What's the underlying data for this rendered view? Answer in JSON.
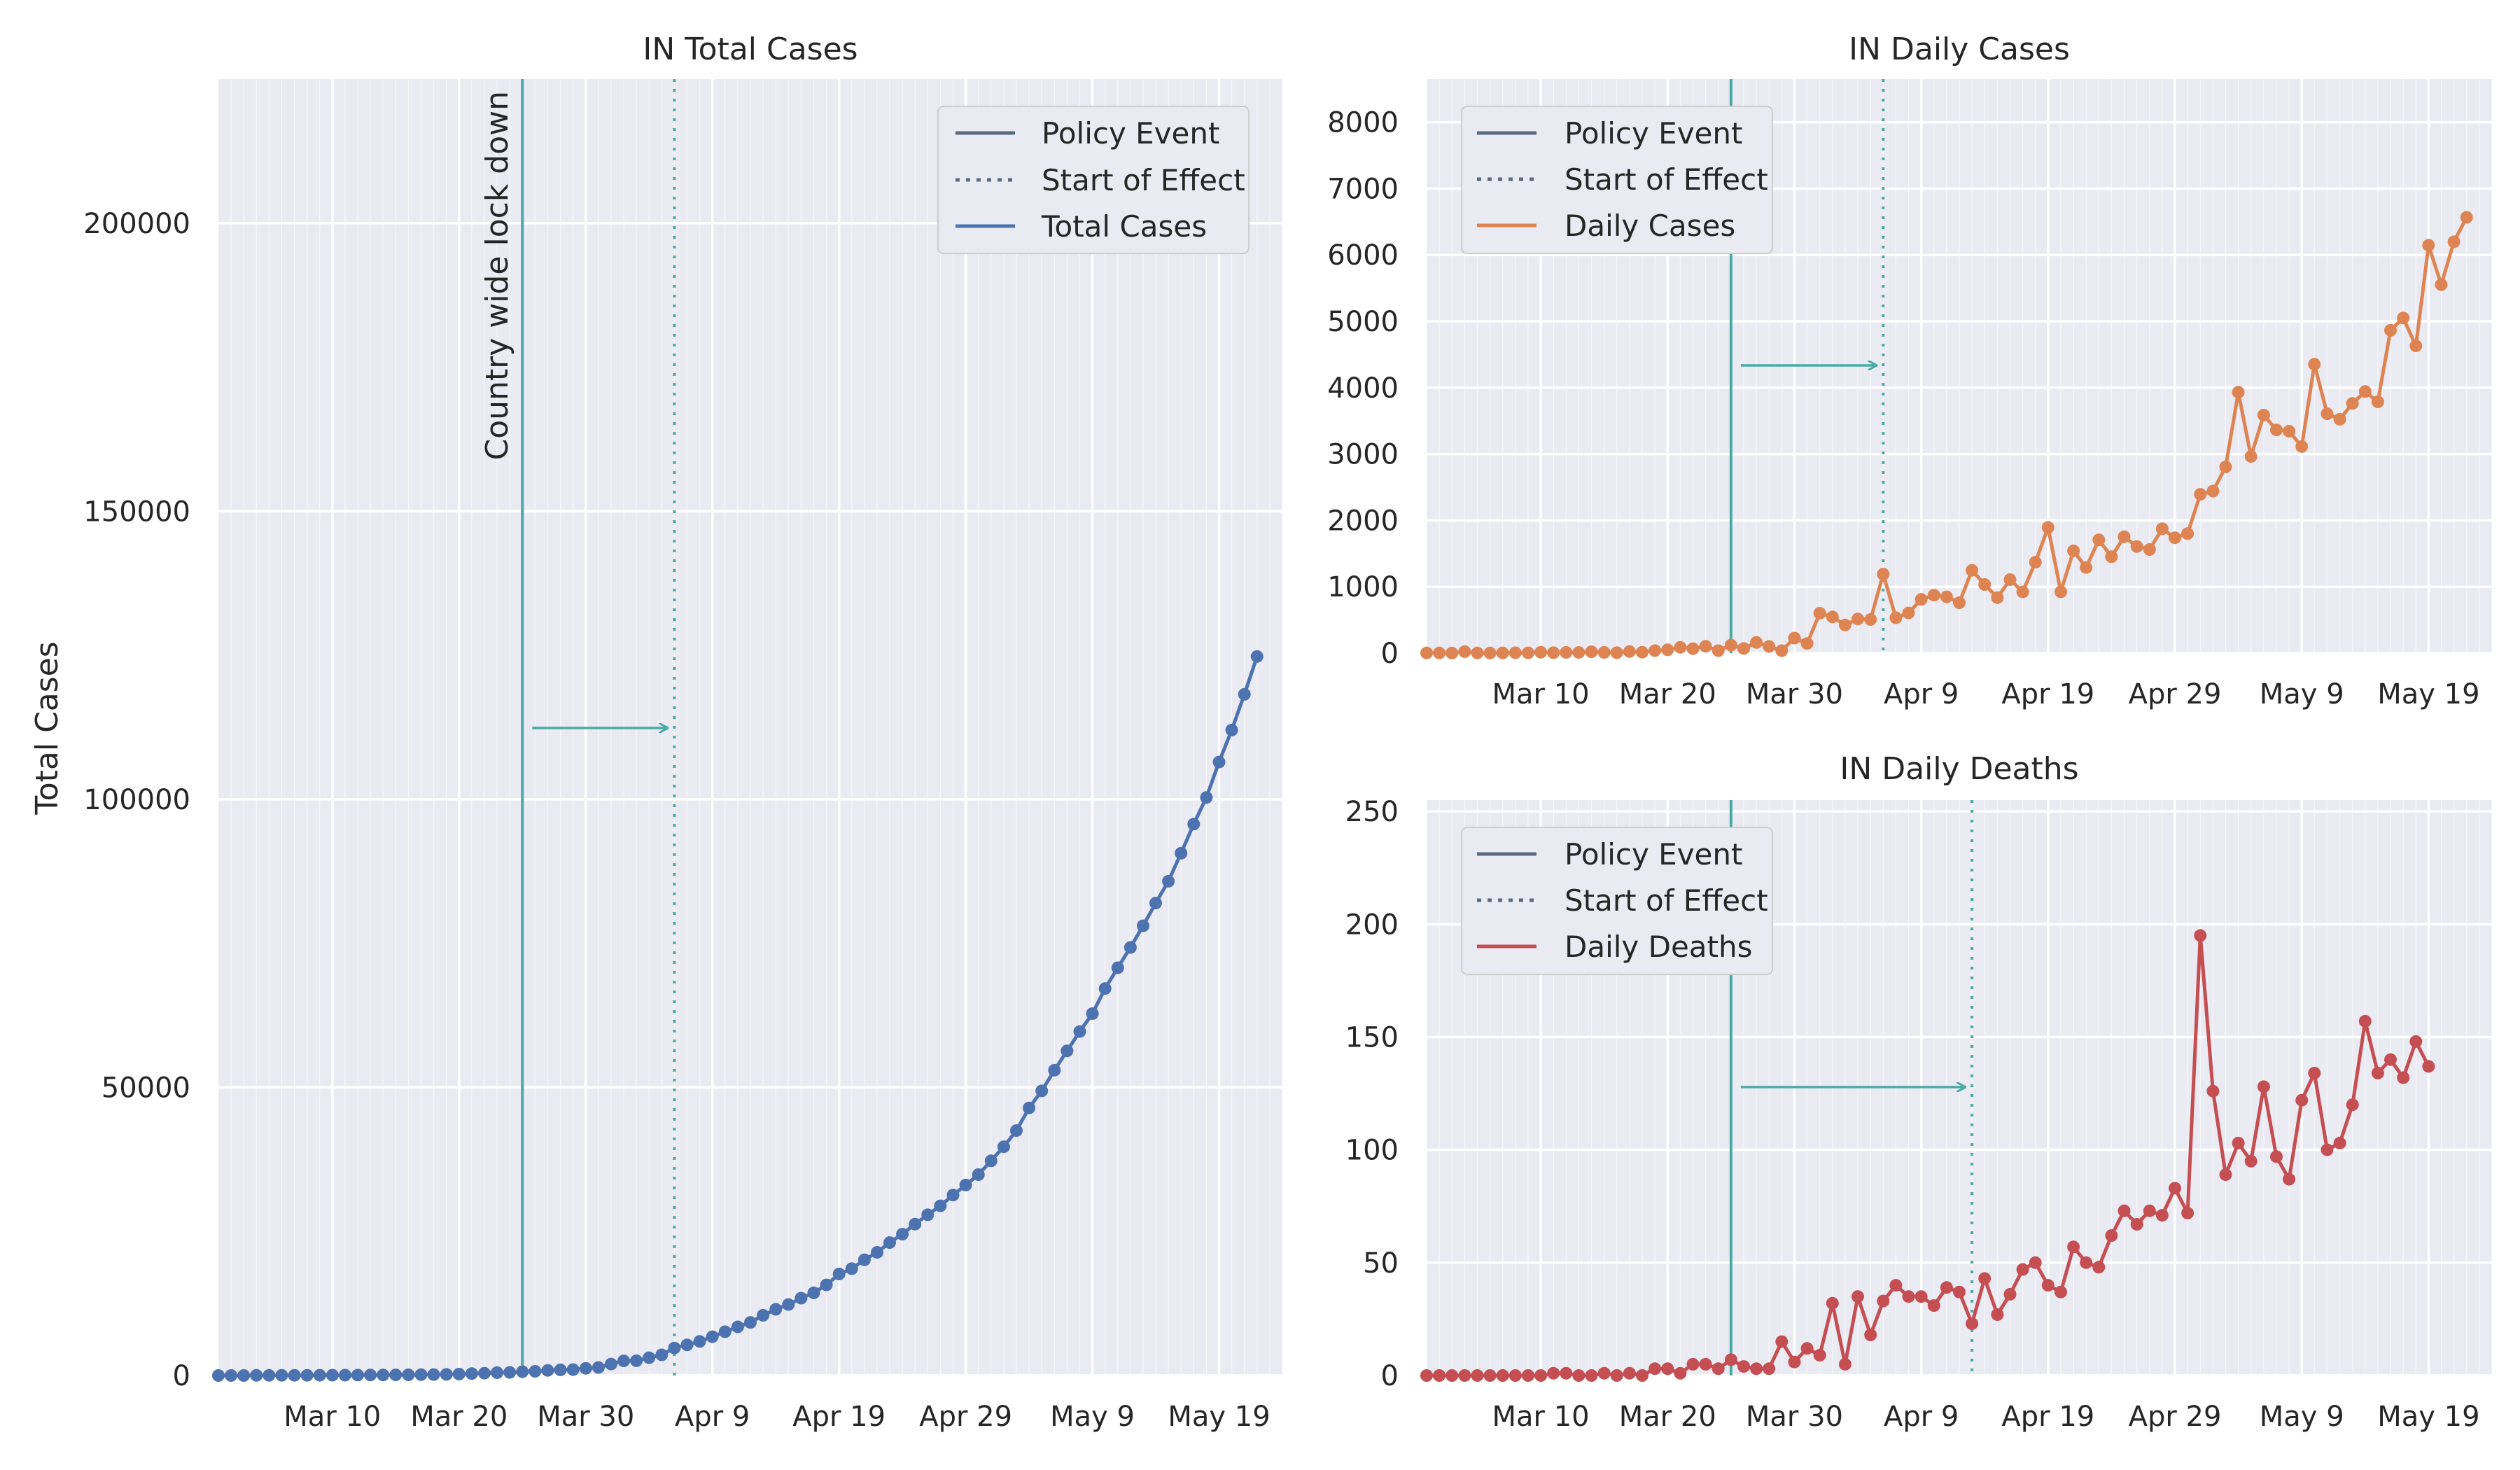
{
  "colors": {
    "panel_bg": "#eaeaf2",
    "grid": "#ffffff",
    "policy_line": "#4aaaa5",
    "legend_policy": "#5a6b7d",
    "total_cases": "#4c72b0",
    "daily_cases": "#dd8452",
    "daily_deaths": "#c44e52"
  },
  "chart_data": [
    {
      "id": "total",
      "type": "line",
      "title": "IN Total Cases",
      "xlabel": "",
      "ylabel": "Total Cases",
      "ylim": [
        0,
        225000
      ],
      "yticks": [
        0,
        50000,
        100000,
        150000,
        200000
      ],
      "ytick_labels": [
        "0",
        "50000",
        "100000",
        "150000",
        "200000"
      ],
      "xlim": [
        0,
        84
      ],
      "xticks": [
        9,
        19,
        29,
        39,
        49,
        59,
        69,
        79
      ],
      "xtick_labels": [
        "Mar 10",
        "Mar 20",
        "Mar 30",
        "Apr 9",
        "Apr 19",
        "Apr 29",
        "May 9",
        "May 19"
      ],
      "policy_event_x": 24,
      "start_of_effect_x": 36,
      "policy_annotation": "Country wide lock down",
      "grid": true,
      "legend_position": "top-right",
      "legend": [
        "Policy Event",
        "Start of Effect",
        "Total Cases"
      ],
      "series": [
        {
          "name": "Total Cases",
          "color_key": "total_cases",
          "x_start": 0,
          "values": [
            3,
            5,
            6,
            28,
            30,
            31,
            34,
            39,
            43,
            56,
            62,
            73,
            82,
            102,
            113,
            119,
            142,
            156,
            194,
            244,
            330,
            396,
            499,
            536,
            657,
            727,
            887,
            987,
            1024,
            1251,
            1397,
            1998,
            2543,
            2567,
            3082,
            3588,
            4778,
            5311,
            5916,
            6725,
            7598,
            8446,
            9205,
            10453,
            11487,
            12322,
            13430,
            14352,
            15722,
            17615,
            18539,
            20080,
            21370,
            23077,
            24530,
            26283,
            27890,
            29451,
            31324,
            33062,
            34863,
            37257,
            39699,
            42505,
            46437,
            49400,
            52987,
            56351,
            59695,
            62808,
            67161,
            70768,
            74292,
            78055,
            81997,
            85784,
            90648,
            95698,
            100328,
            106475,
            112028,
            118226,
            124794
          ]
        }
      ]
    },
    {
      "id": "daily",
      "type": "line",
      "title": "IN Daily Cases",
      "xlabel": "",
      "ylabel": "",
      "ylim": [
        0,
        8650
      ],
      "yticks": [
        0,
        1000,
        2000,
        3000,
        4000,
        5000,
        6000,
        7000,
        8000
      ],
      "ytick_labels": [
        "0",
        "1000",
        "2000",
        "3000",
        "4000",
        "5000",
        "6000",
        "7000",
        "8000"
      ],
      "xlim": [
        0,
        84
      ],
      "xticks": [
        9,
        19,
        29,
        39,
        49,
        59,
        69,
        79
      ],
      "xtick_labels": [
        "Mar 10",
        "Mar 20",
        "Mar 30",
        "Apr 9",
        "Apr 19",
        "Apr 29",
        "May 9",
        "May 19"
      ],
      "policy_event_x": 24,
      "start_of_effect_x": 36,
      "grid": true,
      "legend_position": "top-left",
      "legend": [
        "Policy Event",
        "Start of Effect",
        "Daily Cases"
      ],
      "series": [
        {
          "name": "Daily Cases",
          "color_key": "daily_cases",
          "x_start": 0,
          "values": [
            2,
            2,
            1,
            22,
            2,
            1,
            3,
            5,
            4,
            13,
            6,
            11,
            9,
            20,
            11,
            6,
            23,
            14,
            38,
            50,
            86,
            66,
            103,
            37,
            121,
            70,
            160,
            100,
            37,
            227,
            146,
            601,
            545,
            424,
            515,
            506,
            1190,
            533,
            605,
            809,
            873,
            848,
            759,
            1248,
            1034,
            835,
            1108,
            922,
            1370,
            1893,
            924,
            1541,
            1290,
            1707,
            1453,
            1753,
            1607,
            1561,
            1873,
            1738,
            1801,
            2394,
            2442,
            2806,
            3932,
            2963,
            3587,
            3364,
            3344,
            3113,
            4353,
            3607,
            3524,
            3763,
            3942,
            3787,
            4864,
            5050,
            4630,
            6147,
            5553,
            6198,
            6568
          ]
        }
      ]
    },
    {
      "id": "deaths",
      "type": "line",
      "title": "IN Daily Deaths",
      "xlabel": "",
      "ylabel": "",
      "ylim": [
        0,
        255
      ],
      "yticks": [
        0,
        50,
        100,
        150,
        200,
        250
      ],
      "ytick_labels": [
        "0",
        "50",
        "100",
        "150",
        "200",
        "250"
      ],
      "xlim": [
        0,
        84
      ],
      "xticks": [
        9,
        19,
        29,
        39,
        49,
        59,
        69,
        79
      ],
      "xtick_labels": [
        "Mar 10",
        "Mar 20",
        "Mar 30",
        "Apr 9",
        "Apr 19",
        "Apr 29",
        "May 9",
        "May 19"
      ],
      "policy_event_x": 24,
      "start_of_effect_x": 43,
      "grid": true,
      "legend_position": "top-left",
      "legend": [
        "Policy Event",
        "Start of Effect",
        "Daily Deaths"
      ],
      "series": [
        {
          "name": "Daily Deaths",
          "color_key": "daily_deaths",
          "x_start": 0,
          "values": [
            0,
            0,
            0,
            0,
            0,
            0,
            0,
            0,
            0,
            0,
            1,
            1,
            0,
            0,
            1,
            0,
            1,
            0,
            3,
            3,
            1,
            5,
            5,
            3,
            7,
            4,
            3,
            3,
            15,
            6,
            12,
            9,
            32,
            5,
            35,
            18,
            33,
            40,
            35,
            35,
            31,
            39,
            37,
            23,
            43,
            27,
            36,
            47,
            50,
            40,
            37,
            57,
            50,
            48,
            62,
            73,
            67,
            73,
            71,
            83,
            72,
            195,
            126,
            89,
            103,
            95,
            128,
            97,
            87,
            122,
            134,
            100,
            103,
            120,
            157,
            134,
            140,
            132,
            148,
            137
          ]
        }
      ]
    }
  ]
}
